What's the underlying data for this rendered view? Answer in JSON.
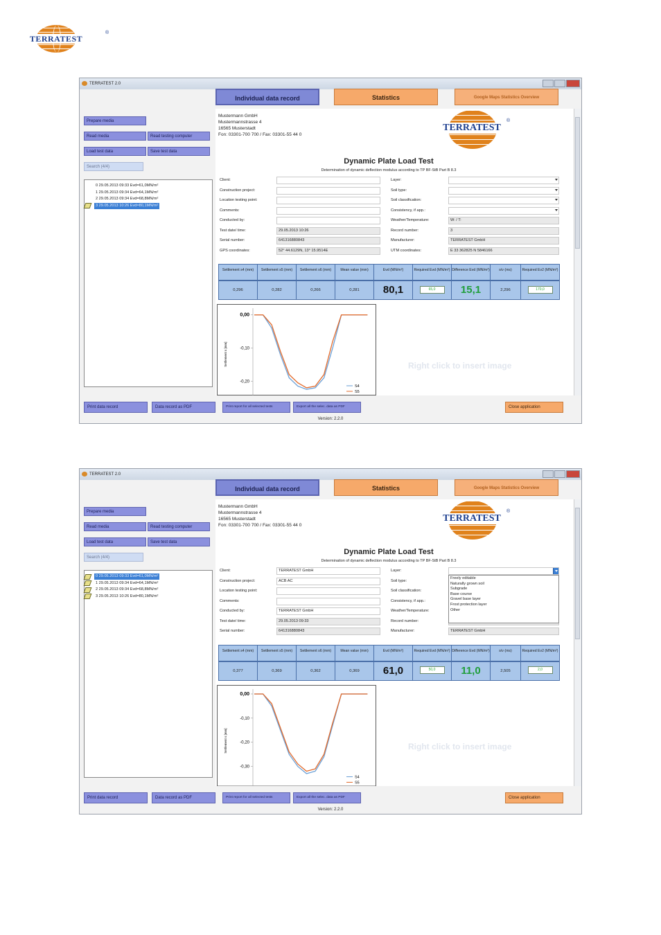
{
  "brand": {
    "logo_text": "TERRATEST",
    "reg": "®"
  },
  "screens": [
    {
      "window_title": "TERRATEST 2.0",
      "tabs": {
        "individual": "Individual data record",
        "statistics": "Statistics",
        "maps": "Google Maps Statistics Overview"
      },
      "left_buttons": {
        "prepare": "Prepare media",
        "read_media": "Read media",
        "read_computer": "Read testing computer",
        "load": "Load test data",
        "save": "Save test data",
        "search": "Search (4/4)"
      },
      "records": [
        {
          "label": "0  29.05.2013 09:33  Evd=61,0MN/m²",
          "selected": false
        },
        {
          "label": "1  29.05.2013 09:34  Evd=64,1MN/m²",
          "selected": false
        },
        {
          "label": "2  29.05.2013 09:34  Evd=68,8MN/m²",
          "selected": false
        },
        {
          "label": "3  29.05.2013 10:26  Evd=80,1MN/m²",
          "selected": true
        }
      ],
      "address": [
        "Mustermann GmbH",
        "Mustermannstrasse 4",
        "16565 Musterstadt",
        "Fon: 03301-700 700 / Fax: 03301-55 44 0"
      ],
      "report_title": "Dynamic Plate Load Test",
      "report_subtitle": "Determination of dynamic deflection modulus according to TP BF-StB Part B 8.3",
      "fields_left": [
        {
          "label": "Client:",
          "value": ""
        },
        {
          "label": "Construction project:",
          "value": ""
        },
        {
          "label": "Location testing point:",
          "value": ""
        },
        {
          "label": "Comments:",
          "value": ""
        },
        {
          "label": "Conducted by:",
          "value": ""
        },
        {
          "label": "Test date/ time:",
          "value": "29.05.2013 10:26"
        },
        {
          "label": "Serial number:",
          "value": "641316880843"
        },
        {
          "label": "GPS coordinates:",
          "value": "52° 44.6129N, 13° 15.9514E"
        }
      ],
      "fields_right": [
        {
          "label": "Layer:",
          "value": ""
        },
        {
          "label": "Soil type:",
          "value": ""
        },
        {
          "label": "Soil classification:",
          "value": ""
        },
        {
          "label": "Consistency, if app.:",
          "value": ""
        },
        {
          "label": "Weather/Temperature:",
          "value": "W: / T:"
        },
        {
          "label": "Record number:",
          "value": "3"
        },
        {
          "label": "Manufacturer:",
          "value": "TERRATEST GmbH"
        },
        {
          "label": "UTM coordinates:",
          "value": "E 33 362825 N 5846166"
        }
      ],
      "measure_headers": [
        "Settlement s4 (mm)",
        "Settlement s5 (mm)",
        "Settlement s6 (mm)",
        "Mean value (mm)",
        "Evd (MN/m²)",
        "Required Evd (MN/m²)",
        "Difference Evd (MN/m²)",
        "s/v (ms)",
        "Required Ev2 (MN/m²)"
      ],
      "measure_values": [
        "0,296",
        "0,282",
        "0,266",
        "0,281",
        "80,1",
        "65,0",
        "15,1",
        "2,296",
        "170,0"
      ],
      "chart_data": {
        "type": "line",
        "ylabel": "Settlement s [mm]",
        "yticks": [
          "0,00",
          "-0,10",
          "-0,20"
        ],
        "ylim": [
          -0.26,
          0.02
        ],
        "series": [
          {
            "name": "S4",
            "color": "#6a9fd6",
            "values": [
              0,
              0,
              -0.04,
              -0.12,
              -0.19,
              -0.215,
              -0.225,
              -0.22,
              -0.19,
              -0.1,
              0,
              0,
              0,
              0
            ]
          },
          {
            "name": "S5",
            "color": "#e36a2a",
            "values": [
              0,
              0,
              -0.03,
              -0.11,
              -0.18,
              -0.205,
              -0.22,
              -0.215,
              -0.18,
              -0.08,
              0,
              0,
              0,
              0
            ]
          }
        ]
      },
      "right_click_hint": "Right click to insert image",
      "bottom_buttons": {
        "print": "Print data record",
        "pdf": "Data record as PDF",
        "print_all": "Print report for all selected tests",
        "export": "Export all the selec. data as PDF",
        "close": "Close application"
      },
      "version": "Version: 2.2.0",
      "dropdown_open": false,
      "dropdown_options": []
    },
    {
      "window_title": "TERRATEST 2.0",
      "tabs": {
        "individual": "Individual data record",
        "statistics": "Statistics",
        "maps": "Google Maps Statistics Overview"
      },
      "left_buttons": {
        "prepare": "Prepare media",
        "read_media": "Read media",
        "read_computer": "Read testing computer",
        "load": "Load test data",
        "save": "Save test data",
        "search": "Search (4/4)"
      },
      "records": [
        {
          "label": "0  29.05.2013 09:33  Evd=61,0MN/m²",
          "selected": true
        },
        {
          "label": "1  29.05.2013 09:34  Evd=64,1MN/m²",
          "selected": false
        },
        {
          "label": "2  29.05.2013 09:34  Evd=68,8MN/m²",
          "selected": false
        },
        {
          "label": "3  29.05.2013 10:26  Evd=80,1MN/m²",
          "selected": false
        }
      ],
      "address": [
        "Mustermann GmbH",
        "Mustermannstrasse 4",
        "16565 Musterstadt",
        "Fon: 03301-700 700 / Fax: 03301-55 44 0"
      ],
      "report_title": "Dynamic Plate Load Test",
      "report_subtitle": "Determination of dynamic deflection modulus according to TP BF-StB Part B 8.3",
      "fields_left": [
        {
          "label": "Client:",
          "value": "TERRATEST GmbH"
        },
        {
          "label": "Construction project:",
          "value": "ACB AC"
        },
        {
          "label": "Location testing point:",
          "value": ""
        },
        {
          "label": "Comments:",
          "value": ""
        },
        {
          "label": "Conducted by:",
          "value": "TERRATEST GmbH"
        },
        {
          "label": "Test date/ time:",
          "value": "29.05.2013 09:33"
        },
        {
          "label": "Serial number:",
          "value": "641316880843"
        }
      ],
      "fields_right": [
        {
          "label": "Layer:",
          "value": ""
        },
        {
          "label": "Soil type:",
          "value": ""
        },
        {
          "label": "Soil classification:",
          "value": ""
        },
        {
          "label": "Consistency, if app.:",
          "value": ""
        },
        {
          "label": "Weather/Temperature:",
          "value": ""
        },
        {
          "label": "Record number:",
          "value": ""
        },
        {
          "label": "Manufacturer:",
          "value": "TERRATEST GmbH"
        }
      ],
      "measure_headers": [
        "Settlement s4 (mm)",
        "Settlement s5 (mm)",
        "Settlement s6 (mm)",
        "Mean value (mm)",
        "Evd (MN/m²)",
        "Required Evd (MN/m²)",
        "Difference Evd (MN/m²)",
        "s/v (ms)",
        "Required Ev2 (MN/m²)"
      ],
      "measure_values": [
        "0,377",
        "0,369",
        "0,362",
        "0,369",
        "61,0",
        "50,0",
        "11,0",
        "2,505",
        "2,0"
      ],
      "chart_data": {
        "type": "line",
        "ylabel": "Settlement s [mm]",
        "yticks": [
          "0,00",
          "-0,10",
          "-0,20",
          "-0,30"
        ],
        "ylim": [
          -0.35,
          0.02
        ],
        "series": [
          {
            "name": "S4",
            "color": "#6a9fd6",
            "values": [
              0,
              0,
              -0.05,
              -0.15,
              -0.25,
              -0.3,
              -0.33,
              -0.32,
              -0.26,
              -0.13,
              0,
              0,
              0,
              0
            ]
          },
          {
            "name": "S5",
            "color": "#e36a2a",
            "values": [
              0,
              0,
              -0.04,
              -0.14,
              -0.24,
              -0.29,
              -0.32,
              -0.31,
              -0.25,
              -0.12,
              0,
              0,
              0,
              0
            ]
          }
        ]
      },
      "right_click_hint": "Right click to insert image",
      "bottom_buttons": {
        "print": "Print data record",
        "pdf": "Data record as PDF",
        "print_all": "Print report for all selected tests",
        "export": "Export all the selec. data as PDF",
        "close": "Close application"
      },
      "version": "Version: 2.2.0",
      "dropdown_open": true,
      "dropdown_options": [
        "Freely editable",
        "Naturally grown soil",
        "Subgrade",
        "Base course",
        "Gravel base layer",
        "Frost protection layer",
        "Other"
      ]
    }
  ]
}
